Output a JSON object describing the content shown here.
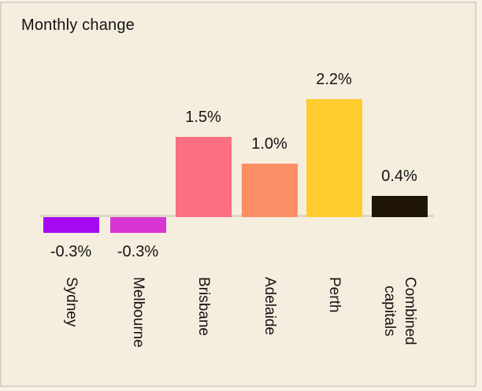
{
  "card": {
    "title": "Monthly change"
  },
  "chart_data": {
    "type": "bar",
    "title": "Monthly change",
    "unit": "%",
    "categories": [
      "Sydney",
      "Melbourne",
      "Brisbane",
      "Adelaide",
      "Perth",
      "Combined capitals"
    ],
    "values": [
      -0.3,
      -0.3,
      1.5,
      1.0,
      2.2,
      0.4
    ],
    "data_labels": [
      "-0.3%",
      "-0.3%",
      "1.5%",
      "1.0%",
      "2.2%",
      "0.4%"
    ],
    "bars": [
      {
        "id": "sydney",
        "label_lines": [
          "Sydney"
        ],
        "value": -0.3,
        "data_label": "-0.3%",
        "color": "#a50af2"
      },
      {
        "id": "melbourne",
        "label_lines": [
          "Melbourne"
        ],
        "value": -0.3,
        "data_label": "-0.3%",
        "color": "#d935d3"
      },
      {
        "id": "brisbane",
        "label_lines": [
          "Brisbane"
        ],
        "value": 1.5,
        "data_label": "1.5%",
        "color": "#fc6e82"
      },
      {
        "id": "adelaide",
        "label_lines": [
          "Adelaide"
        ],
        "value": 1.0,
        "data_label": "1.0%",
        "color": "#fc8e66"
      },
      {
        "id": "perth",
        "label_lines": [
          "Perth"
        ],
        "value": 2.2,
        "data_label": "2.2%",
        "color": "#ffcd2e"
      },
      {
        "id": "combined-capitals",
        "label_lines": [
          "Combined",
          "capitals"
        ],
        "value": 0.4,
        "data_label": "0.4%",
        "color": "#1f1505"
      }
    ],
    "xlabel": "",
    "ylabel": "",
    "ylim": [
      -0.5,
      2.5
    ],
    "grid": false,
    "legend": false,
    "zero_baseline": true,
    "category_label_rotation_deg": 90
  },
  "colors": {
    "page_background": "#f8f1e5",
    "card_background": "#f5edde",
    "card_border": "#d9d3c6",
    "baseline": "#ddd6c8",
    "text": "#141414"
  }
}
